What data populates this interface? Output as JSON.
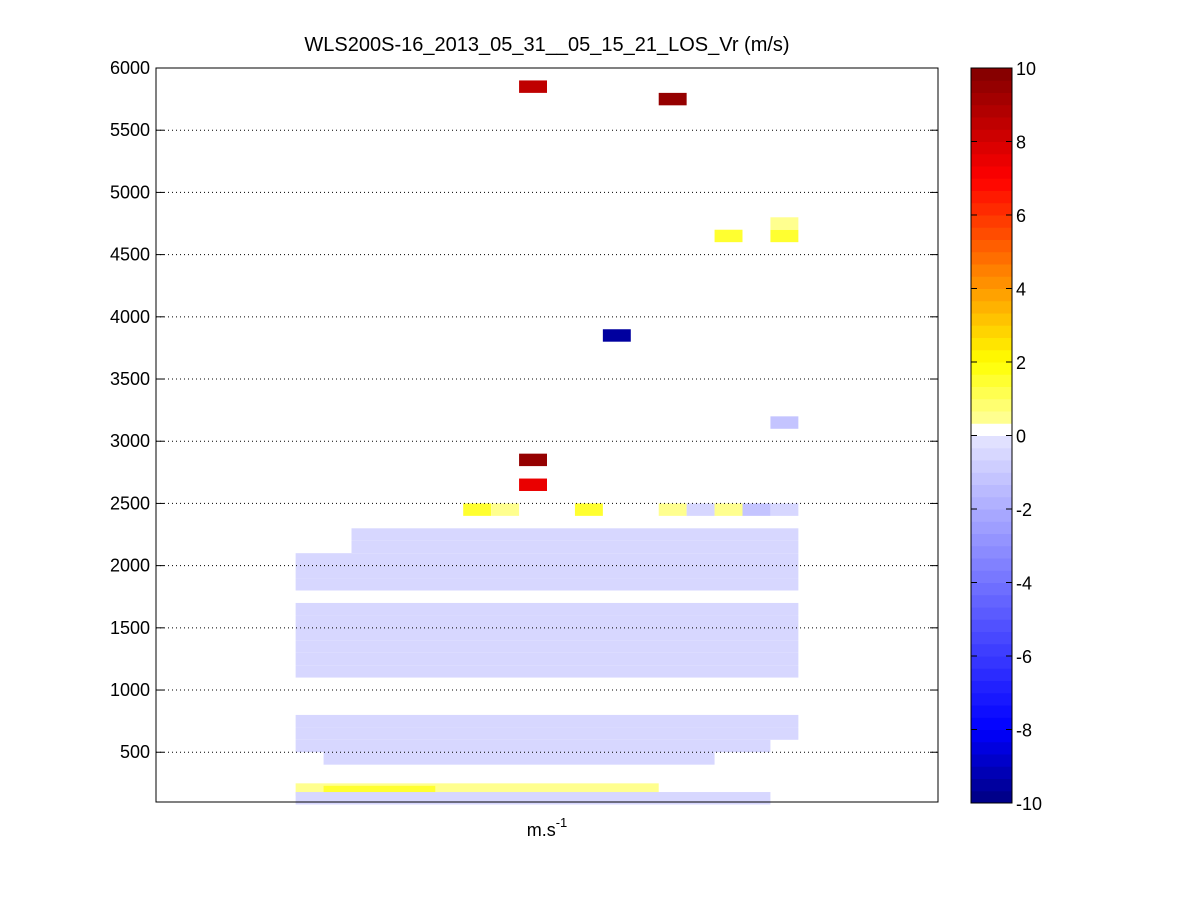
{
  "chart_data": {
    "type": "heatmap",
    "title": "WLS200S-16_2013_05_31__05_15_21_LOS_Vr (m/s)",
    "xlabel_base": "m.s",
    "xlabel_exp": "-1",
    "ylabel": "",
    "ylim": [
      100,
      6000
    ],
    "yticks": [
      500,
      1000,
      1500,
      2000,
      2500,
      3000,
      3500,
      4000,
      4500,
      5000,
      5500,
      6000
    ],
    "grid": "horizontal dotted",
    "colorbar": {
      "range": [
        -10,
        10
      ],
      "ticks": [
        10,
        8,
        6,
        4,
        2,
        0,
        -2,
        -4,
        -6,
        -8,
        -10
      ],
      "colormap": "blue-white-yellow-red"
    },
    "column_count": 28,
    "cells": [
      {
        "col": 13,
        "alt": 5850,
        "v": 8.5
      },
      {
        "col": 18,
        "alt": 5750,
        "v": 9.5
      },
      {
        "col": 20,
        "alt": 4650,
        "v": 1.5
      },
      {
        "col": 22,
        "alt": 4650,
        "v": 1.5
      },
      {
        "col": 22,
        "alt": 4750,
        "v": 0.6
      },
      {
        "col": 16,
        "alt": 3850,
        "v": -9.5
      },
      {
        "col": 22,
        "alt": 3150,
        "v": -1.2
      },
      {
        "col": 13,
        "alt": 2850,
        "v": 9.5
      },
      {
        "col": 13,
        "alt": 2650,
        "v": 7.5
      },
      {
        "col": 11,
        "alt": 2450,
        "v": 1.5
      },
      {
        "col": 12,
        "alt": 2450,
        "v": 0.6
      },
      {
        "col": 15,
        "alt": 2450,
        "v": 1.5
      },
      {
        "col": 18,
        "alt": 2450,
        "v": 0.6
      },
      {
        "col": 19,
        "alt": 2450,
        "v": -0.4
      },
      {
        "col": 20,
        "alt": 2450,
        "v": 0.6
      },
      {
        "col": 21,
        "alt": 2450,
        "v": -1.2
      },
      {
        "col": 22,
        "alt": 2450,
        "v": -0.4
      }
    ],
    "bands": [
      {
        "alt": 2250,
        "cols": [
          7,
          22
        ],
        "v": -0.4
      },
      {
        "alt": 2150,
        "cols": [
          7,
          22
        ],
        "v": -0.4
      },
      {
        "alt": 2050,
        "cols": [
          5,
          22
        ],
        "v": -0.4
      },
      {
        "alt": 1950,
        "cols": [
          5,
          22
        ],
        "v": -0.4
      },
      {
        "alt": 1850,
        "cols": [
          5,
          22
        ],
        "v": -0.4
      },
      {
        "alt": 1650,
        "cols": [
          5,
          22
        ],
        "v": -0.4
      },
      {
        "alt": 1550,
        "cols": [
          5,
          22
        ],
        "v": -0.4
      },
      {
        "alt": 1450,
        "cols": [
          5,
          22
        ],
        "v": -0.4
      },
      {
        "alt": 1350,
        "cols": [
          5,
          22
        ],
        "v": -0.4
      },
      {
        "alt": 1250,
        "cols": [
          5,
          22
        ],
        "v": -0.4
      },
      {
        "alt": 1150,
        "cols": [
          5,
          22
        ],
        "v": -0.4
      },
      {
        "alt": 750,
        "cols": [
          5,
          22
        ],
        "v": -0.4
      },
      {
        "alt": 650,
        "cols": [
          5,
          22
        ],
        "v": -0.4
      },
      {
        "alt": 550,
        "cols": [
          5,
          21
        ],
        "v": -0.4
      },
      {
        "alt": 450,
        "cols": [
          6,
          19
        ],
        "v": -0.4
      },
      {
        "alt": 200,
        "cols": [
          5,
          17
        ],
        "v": 0.6
      },
      {
        "alt": 180,
        "cols": [
          6,
          9
        ],
        "v": 1.5
      },
      {
        "alt": 130,
        "cols": [
          5,
          21
        ],
        "v": -0.4
      }
    ]
  }
}
